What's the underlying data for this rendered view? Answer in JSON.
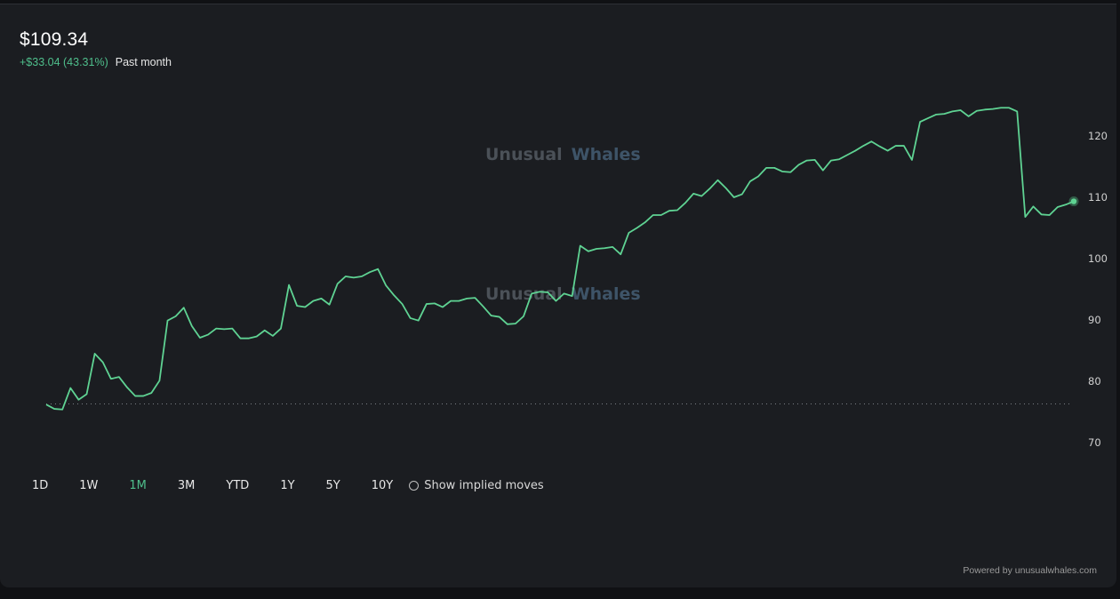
{
  "header": {
    "price": "$109.34",
    "change": "+$33.04 (43.31%)",
    "period": "Past month"
  },
  "watermark": {
    "word1": "Unusual",
    "word2": "Whales"
  },
  "colors": {
    "line": "#5fd393",
    "positive": "#4fbf8c",
    "watermark_word1": "#4b5158",
    "watermark_word2": "#3e5468",
    "baseline_dots": "#7a7f86"
  },
  "range_selector": {
    "options": [
      "1D",
      "1W",
      "1M",
      "3M",
      "YTD",
      "1Y",
      "5Y",
      "10Y"
    ],
    "active": "1M",
    "implied_moves_label": "Show implied moves",
    "implied_moves_checked": false
  },
  "footer": {
    "powered_by": "Powered by unusualwhales.com"
  },
  "chart_data": {
    "type": "line",
    "ylim": [
      66,
      129
    ],
    "y_ticks": [
      70,
      80,
      90,
      100,
      110,
      120
    ],
    "baseline_value": 76.3,
    "grid": false,
    "values": [
      76.2,
      75.5,
      75.4,
      78.9,
      77.0,
      77.9,
      84.5,
      83.1,
      80.4,
      80.7,
      79.0,
      77.6,
      77.6,
      78.1,
      80.1,
      89.9,
      90.6,
      92.0,
      89.0,
      87.1,
      87.6,
      88.6,
      88.5,
      88.6,
      87.0,
      87.0,
      87.3,
      88.3,
      87.4,
      88.6,
      95.7,
      92.3,
      92.1,
      93.1,
      93.5,
      92.5,
      95.9,
      97.1,
      96.9,
      97.1,
      97.8,
      98.3,
      95.6,
      94.0,
      92.6,
      90.3,
      89.9,
      92.6,
      92.7,
      92.1,
      93.1,
      93.1,
      93.5,
      93.6,
      92.2,
      90.7,
      90.5,
      89.3,
      89.4,
      90.6,
      94.3,
      94.6,
      94.5,
      93.1,
      94.3,
      93.9,
      102.1,
      101.2,
      101.6,
      101.7,
      101.9,
      100.7,
      104.2,
      105.0,
      105.9,
      107.1,
      107.1,
      107.8,
      107.9,
      109.1,
      110.6,
      110.2,
      111.4,
      112.8,
      111.5,
      110.0,
      110.5,
      112.6,
      113.4,
      114.8,
      114.8,
      114.2,
      114.1,
      115.3,
      116.0,
      116.1,
      114.4,
      116.0,
      116.2,
      116.9,
      117.6,
      118.4,
      119.1,
      118.3,
      117.6,
      118.4,
      118.4,
      116.1,
      122.3,
      122.9,
      123.5,
      123.6,
      124.0,
      124.2,
      123.2,
      124.1,
      124.3,
      124.4,
      124.6,
      124.6,
      124.0,
      106.8,
      108.5,
      107.2,
      107.1,
      108.4,
      108.8,
      109.34
    ]
  }
}
